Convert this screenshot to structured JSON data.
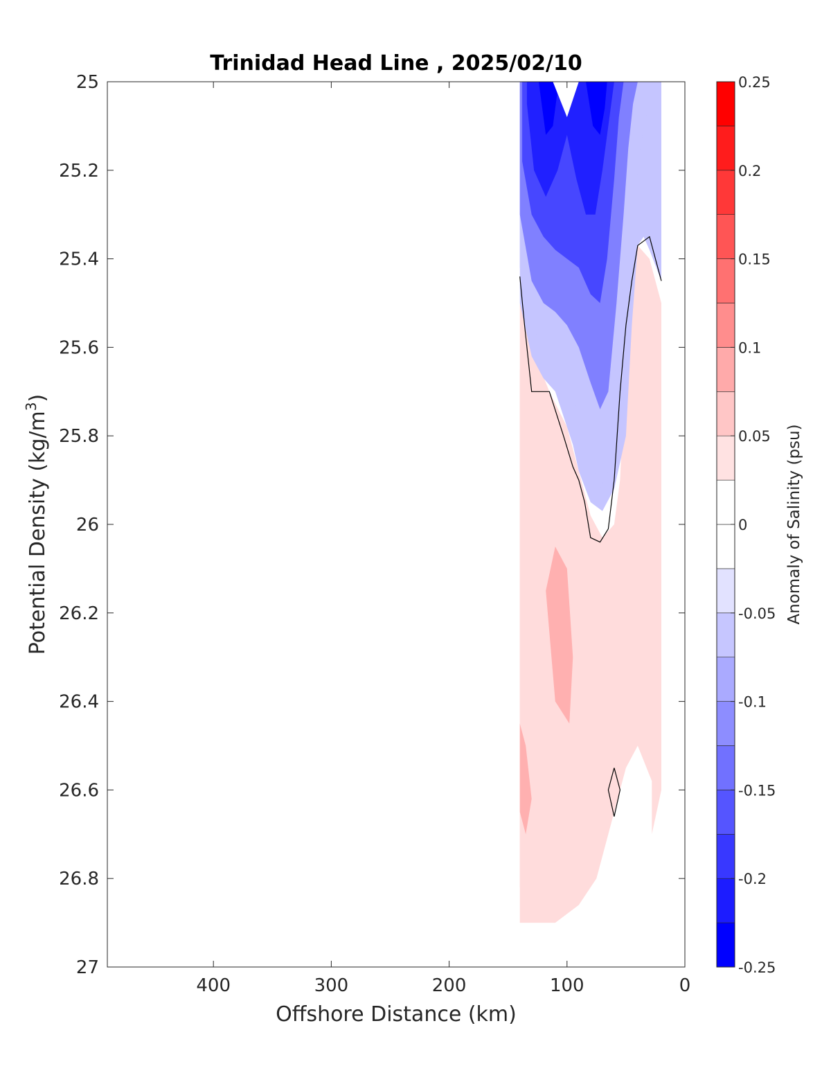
{
  "chart_data": {
    "type": "heatmap",
    "title": "Trinidad Head Line , 2025/02/10",
    "xlabel": "Offshore Distance (km)",
    "ylabel_main": "Potential Density (kg/m",
    "ylabel_sup": "3",
    "ylabel_close": ")",
    "colorbar_label": "Anomaly of Salinity (psu)",
    "xlim": [
      490,
      0
    ],
    "ylim": [
      25,
      27
    ],
    "y_reversed": true,
    "x_reversed": true,
    "xticks": [
      400,
      300,
      200,
      100,
      0
    ],
    "yticks": [
      25,
      25.2,
      25.4,
      25.6,
      25.8,
      26,
      26.2,
      26.4,
      26.6,
      26.8,
      27
    ],
    "clim": [
      -0.25,
      0.25
    ],
    "colorbar_ticks": [
      -0.25,
      -0.2,
      -0.15,
      -0.1,
      -0.05,
      0,
      0.05,
      0.1,
      0.15,
      0.2,
      0.25
    ],
    "color_levels": [
      {
        "from": -0.25,
        "to": -0.225,
        "color": "#0000ff"
      },
      {
        "from": -0.225,
        "to": -0.175,
        "color": "#2020ff"
      },
      {
        "from": -0.175,
        "to": -0.125,
        "color": "#4747ff"
      },
      {
        "from": -0.125,
        "to": -0.075,
        "color": "#8080ff"
      },
      {
        "from": -0.075,
        "to": -0.025,
        "color": "#c5c5ff"
      },
      {
        "from": -0.025,
        "to": 0.025,
        "color": "#ffffff"
      },
      {
        "from": 0.025,
        "to": 0.075,
        "color": "#ffdcdc"
      },
      {
        "from": 0.075,
        "to": 0.125,
        "color": "#ffb0b0"
      },
      {
        "from": 0.125,
        "to": 0.175,
        "color": "#ff8080"
      },
      {
        "from": 0.175,
        "to": 0.225,
        "color": "#ff4a4a"
      },
      {
        "from": 0.225,
        "to": 0.25,
        "color": "#ff0000"
      }
    ],
    "colorbar_band_colors": [
      "#0000ff",
      "#1c1cff",
      "#3838ff",
      "#5555ff",
      "#7171ff",
      "#8d8dff",
      "#aaaaff",
      "#c6c6ff",
      "#e2e2ff",
      "#ffffff",
      "#ffffff",
      "#ffe2e2",
      "#ffc6c6",
      "#ffaaaa",
      "#ff8d8d",
      "#ff7171",
      "#ff5555",
      "#ff3838",
      "#ff1c1c",
      "#ff0000"
    ],
    "regions": [
      {
        "anomaly": 0.04,
        "x": [
          140,
          140,
          130,
          110,
          90,
          75,
          65,
          57,
          50,
          40,
          25,
          20,
          20,
          30,
          40,
          50,
          55,
          60,
          70,
          80,
          90,
          100,
          115,
          130,
          140
        ],
        "y": [
          25.5,
          26.9,
          26.9,
          26.9,
          26.86,
          26.8,
          26.7,
          26.62,
          26.55,
          26.5,
          26.6,
          26.5,
          25.5,
          25.4,
          25.37,
          25.6,
          25.9,
          26.0,
          26.03,
          25.98,
          25.88,
          25.78,
          25.7,
          25.6,
          25.5
        ]
      },
      {
        "anomaly": 0.07,
        "x": [
          140,
          140,
          125,
          100,
          85,
          80,
          80,
          75,
          85,
          100,
          120,
          130,
          140
        ],
        "y": [
          25.65,
          26.82,
          26.84,
          26.8,
          26.72,
          26.6,
          26.4,
          26.2,
          26.0,
          25.9,
          25.8,
          25.7,
          25.65
        ]
      },
      {
        "anomaly": 0.07,
        "x": [
          28,
          28,
          20,
          20,
          28
        ],
        "y": [
          25.5,
          26.7,
          26.6,
          25.6,
          25.5
        ]
      },
      {
        "anomaly": 0.1,
        "x": [
          118,
          110,
          100,
          95,
          98,
          110,
          118
        ],
        "y": [
          26.15,
          26.05,
          26.1,
          26.3,
          26.45,
          26.4,
          26.15
        ]
      },
      {
        "anomaly": 0.1,
        "x": [
          140,
          135,
          130,
          135,
          140
        ],
        "y": [
          26.45,
          26.5,
          26.62,
          26.7,
          26.65
        ]
      },
      {
        "anomaly": -0.04,
        "x": [
          140,
          130,
          120,
          110,
          100,
          95,
          90,
          80,
          70,
          60,
          50,
          45,
          40,
          35,
          30,
          20,
          20,
          140
        ],
        "y": [
          25.5,
          25.62,
          25.67,
          25.7,
          25.78,
          25.82,
          25.88,
          25.95,
          25.97,
          25.92,
          25.8,
          25.55,
          25.37,
          25.35,
          25.38,
          25.45,
          25.0,
          25.0
        ]
      },
      {
        "anomaly": -0.07,
        "x": [
          140,
          130,
          120,
          110,
          100,
          95,
          90,
          80,
          72,
          65,
          60,
          55,
          50,
          45,
          40,
          35,
          30,
          20,
          20,
          140
        ],
        "y": [
          25.42,
          25.55,
          25.6,
          25.62,
          25.66,
          25.7,
          25.76,
          25.85,
          25.92,
          25.88,
          25.7,
          25.5,
          25.4,
          25.3,
          25.2,
          25.1,
          25.05,
          25.05,
          25.0,
          25.0
        ]
      },
      {
        "anomaly": -0.1,
        "x": [
          140,
          130,
          120,
          110,
          100,
          90,
          80,
          72,
          65,
          58,
          52,
          48,
          44,
          40,
          36,
          140
        ],
        "y": [
          25.3,
          25.45,
          25.5,
          25.52,
          25.55,
          25.6,
          25.68,
          25.74,
          25.7,
          25.5,
          25.3,
          25.15,
          25.05,
          25.0,
          25.0,
          25.0
        ]
      },
      {
        "anomaly": -0.15,
        "x": [
          138,
          130,
          120,
          110,
          100,
          90,
          80,
          72,
          66,
          60,
          56,
          52,
          48,
          138
        ],
        "y": [
          25.18,
          25.3,
          25.35,
          25.38,
          25.4,
          25.42,
          25.48,
          25.5,
          25.4,
          25.22,
          25.08,
          25.0,
          25.0,
          25.0
        ]
      },
      {
        "anomaly": -0.2,
        "x": [
          134,
          128,
          118,
          108,
          100,
          92,
          84,
          76,
          70,
          64,
          60,
          58,
          134
        ],
        "y": [
          25.05,
          25.2,
          25.26,
          25.2,
          25.12,
          25.22,
          25.3,
          25.3,
          25.2,
          25.08,
          25.0,
          25.0,
          25.0
        ]
      },
      {
        "anomaly": -0.24,
        "x": [
          124,
          118,
          112,
          108,
          104,
          124
        ],
        "y": [
          25.0,
          25.12,
          25.1,
          25.02,
          25.0,
          25.0
        ]
      },
      {
        "anomaly": -0.24,
        "x": [
          84,
          78,
          72,
          68,
          66,
          84
        ],
        "y": [
          25.0,
          25.1,
          25.12,
          25.06,
          25.0,
          25.0
        ]
      },
      {
        "anomaly": 0.0,
        "x": [
          112,
          100,
          90,
          112
        ],
        "y": [
          25.0,
          25.08,
          25.0,
          25.0
        ]
      }
    ],
    "contour_zero": [
      {
        "x": [
          140,
          136,
          130,
          115,
          103,
          95,
          90,
          85,
          80,
          72,
          65,
          60,
          55,
          50,
          45,
          40,
          30,
          20
        ],
        "y": [
          25.44,
          25.55,
          25.7,
          25.7,
          25.8,
          25.87,
          25.9,
          25.95,
          26.03,
          26.04,
          26.01,
          25.9,
          25.7,
          25.55,
          25.45,
          25.37,
          25.35,
          25.45
        ]
      },
      {
        "x": [
          60,
          55,
          60,
          65,
          60
        ],
        "y": [
          26.55,
          26.6,
          26.66,
          26.6,
          26.55
        ]
      }
    ]
  }
}
